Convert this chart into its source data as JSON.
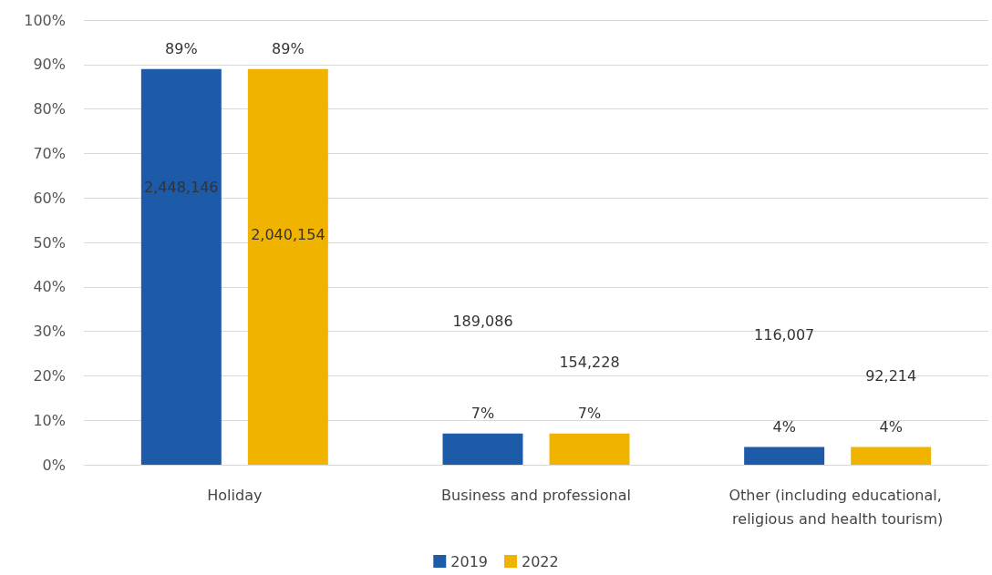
{
  "chart_data": {
    "type": "bar",
    "categories": [
      "Holiday",
      "Business and professional",
      "Other (including educational, religious and health tourism)"
    ],
    "series": [
      {
        "name": "2019",
        "color": "#1d5aa8",
        "values": [
          89,
          7,
          4
        ],
        "value_labels": [
          "89%",
          "7%",
          "4%"
        ]
      },
      {
        "name": "2022",
        "color": "#f0b400",
        "values": [
          89,
          7,
          4
        ],
        "value_labels": [
          "89%",
          "7%",
          "4%"
        ]
      }
    ],
    "ylim": [
      0,
      100
    ],
    "yticks": [
      {
        "value": 0,
        "label": "0%"
      },
      {
        "value": 10,
        "label": "10%"
      },
      {
        "value": 20,
        "label": "20%"
      },
      {
        "value": 30,
        "label": "30%"
      },
      {
        "value": 40,
        "label": "40%"
      },
      {
        "value": 50,
        "label": "50%"
      },
      {
        "value": 60,
        "label": "60%"
      },
      {
        "value": 70,
        "label": "70%"
      },
      {
        "value": 80,
        "label": "80%"
      },
      {
        "value": 90,
        "label": "90%"
      },
      {
        "value": 100,
        "label": "100%"
      }
    ],
    "annotations": [
      "2,448,146",
      "2,040,154",
      "189,086",
      "154,228",
      "116,007",
      "92,214"
    ],
    "grid": "y",
    "legend": "bottom"
  }
}
